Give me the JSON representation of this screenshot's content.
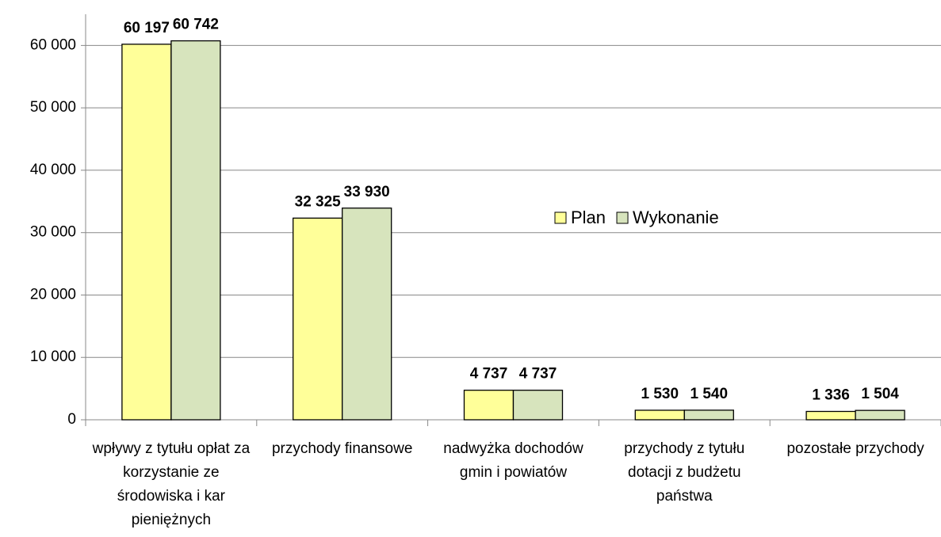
{
  "chart_data": {
    "type": "bar",
    "categories": [
      "wpływy z tytułu opłat za korzystanie ze środowiska i kar pieniężnych",
      "przychody finansowe",
      "nadwyżka dochodów gmin i powiatów",
      "przychody z tytułu dotacji z budżetu państwa",
      "pozostałe przychody"
    ],
    "series": [
      {
        "name": "Plan",
        "color": "#ffff99",
        "values": [
          60197,
          32325,
          4737,
          1530,
          1336
        ],
        "value_labels": [
          "60 197",
          "32 325",
          "4 737",
          "1 530",
          "1 336"
        ]
      },
      {
        "name": "Wykonanie",
        "color": "#d7e4bd",
        "values": [
          60742,
          33930,
          4737,
          1540,
          1504
        ],
        "value_labels": [
          "60 742",
          "33 930",
          "4 737",
          "1 540",
          "1 504"
        ]
      }
    ],
    "ylim": [
      0,
      65000
    ],
    "yticks": [
      0,
      {
        "value": 10000,
        "label": "10 000"
      },
      {
        "value": 20000,
        "label": "20 000"
      },
      {
        "value": 30000,
        "label": "30 000"
      },
      {
        "value": 40000,
        "label": "40 000"
      },
      {
        "value": 50000,
        "label": "50 000"
      },
      {
        "value": 60000,
        "label": "60 000"
      }
    ],
    "grid": true,
    "legend": "center"
  }
}
